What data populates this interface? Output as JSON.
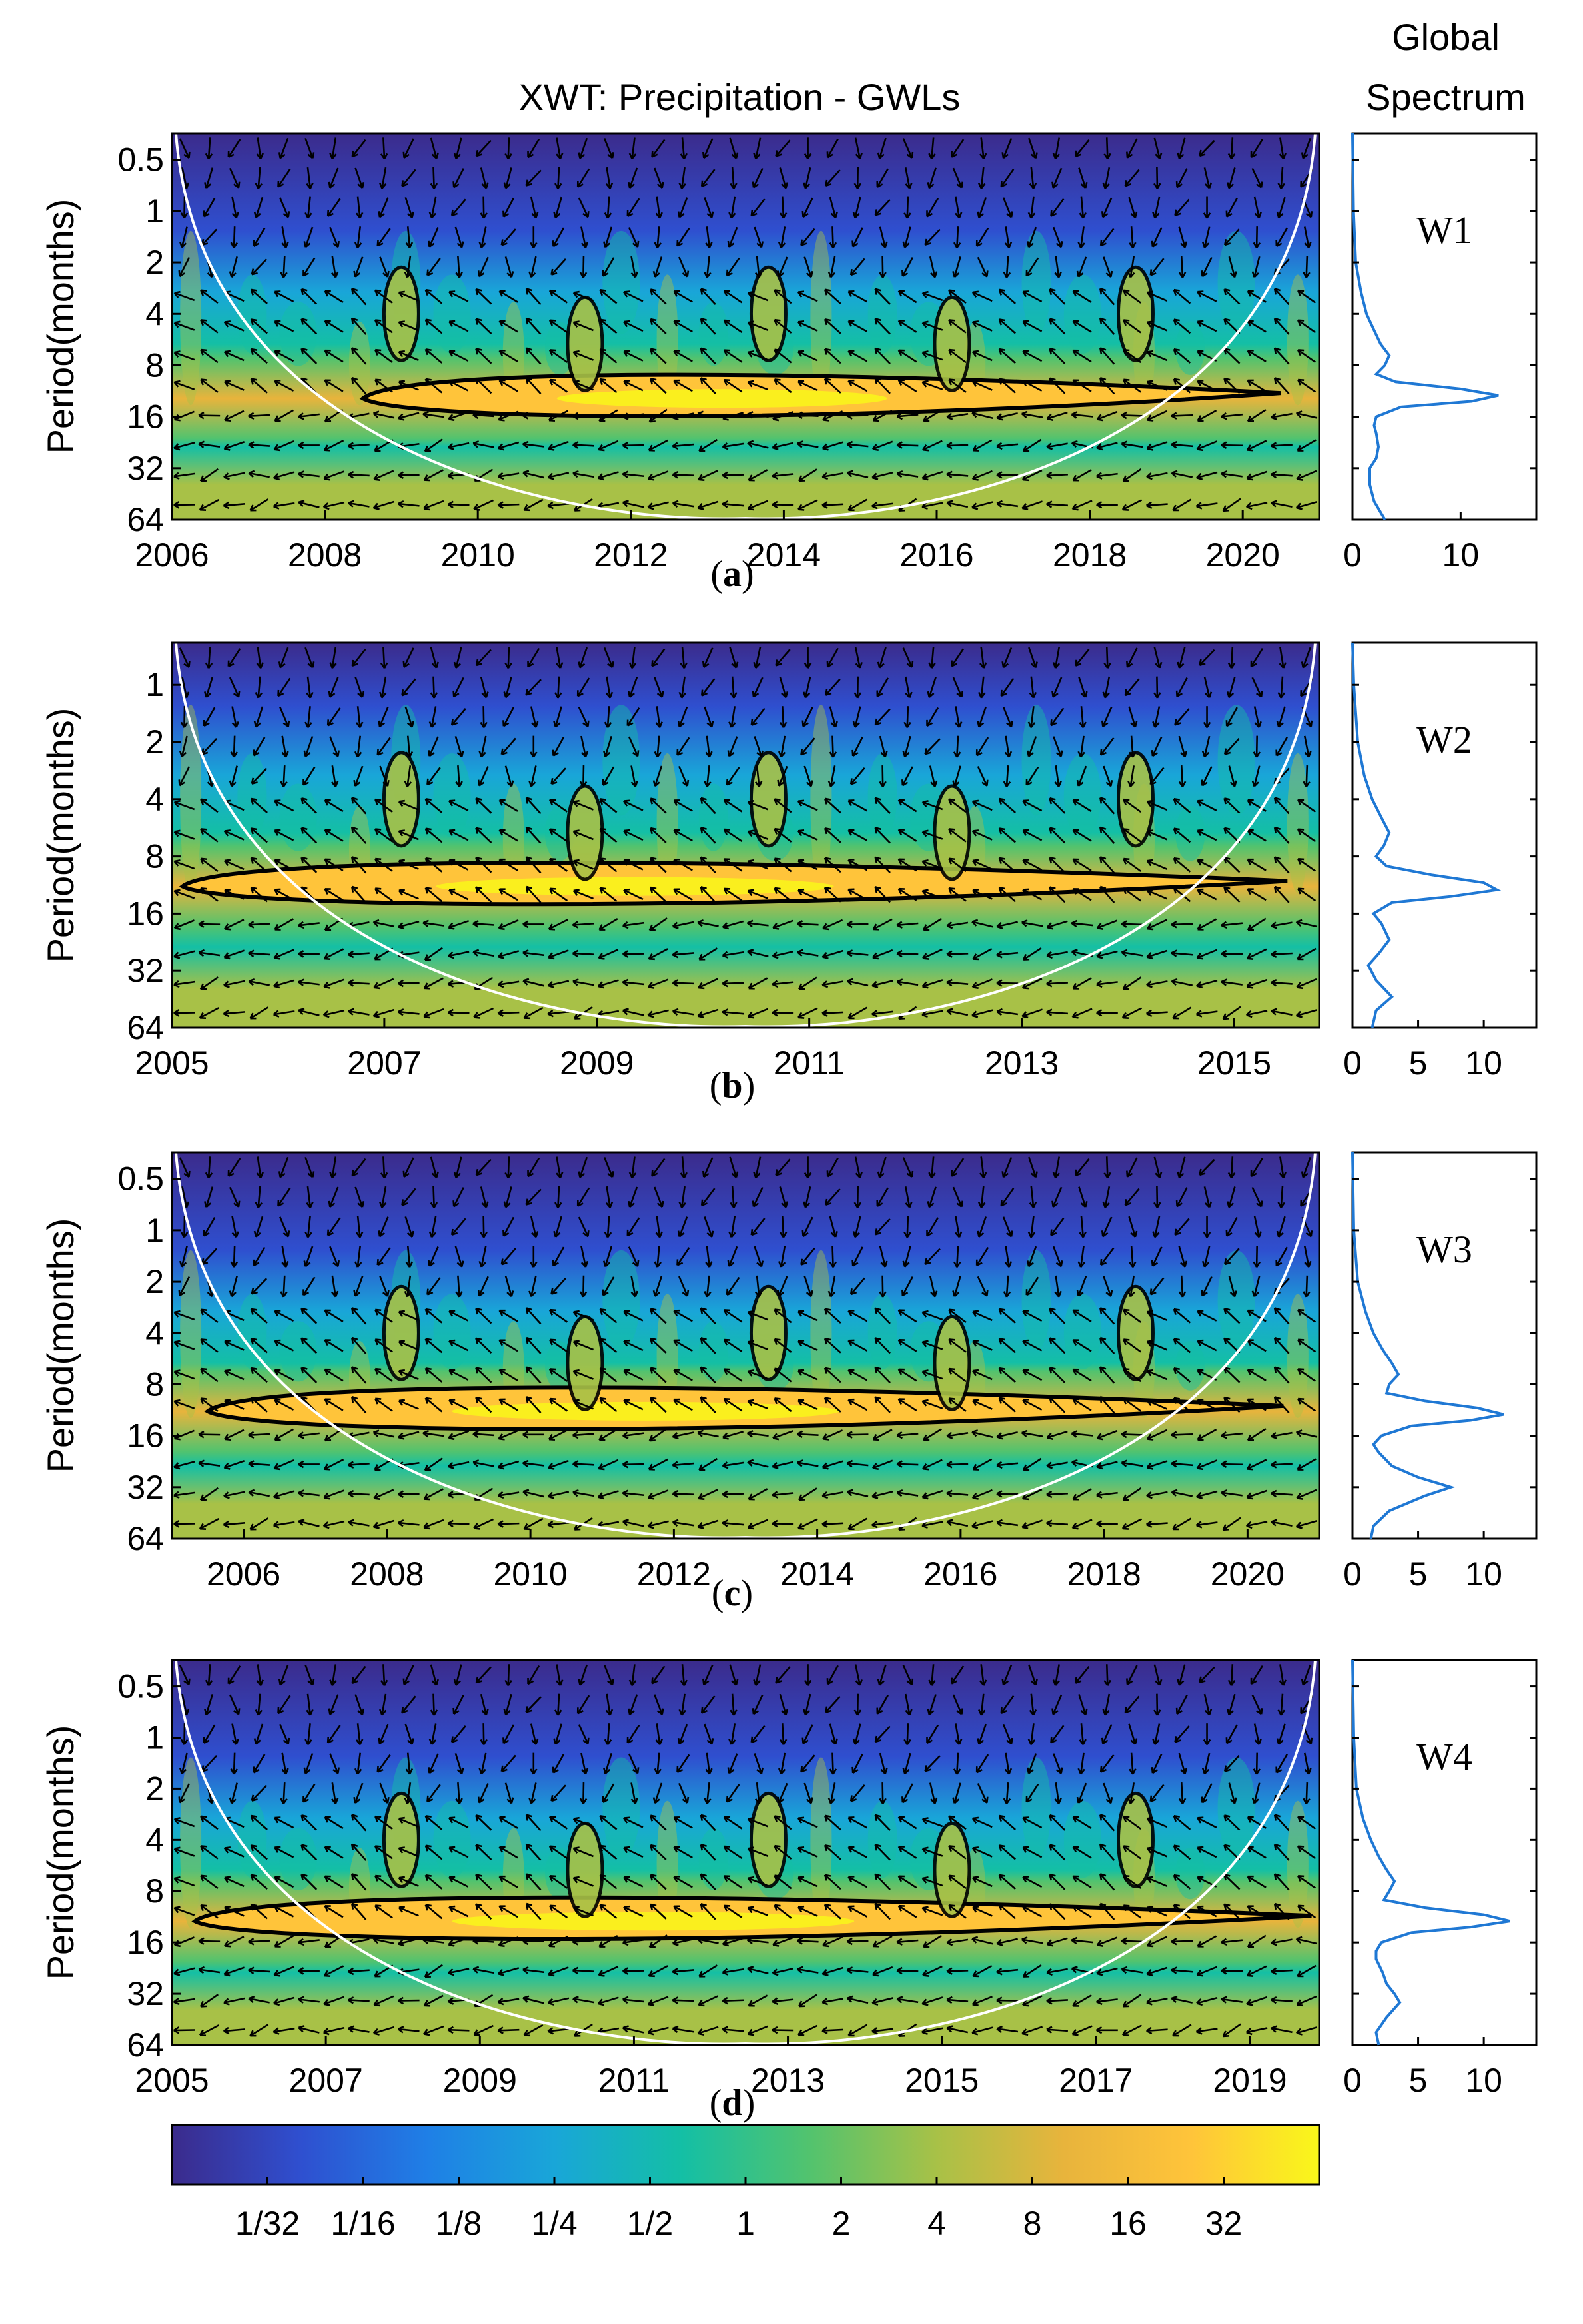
{
  "figure_title": "XWT: Precipitation - GWLs",
  "global_title_line1": "Global",
  "global_title_line2": "Spectrum",
  "colors": {
    "cmap": [
      "#3b2b8c",
      "#2f4fcf",
      "#1f7fe6",
      "#19a6d8",
      "#14bfa5",
      "#52c36e",
      "#a8c147",
      "#e8b43c",
      "#ffc43a",
      "#f9f71a"
    ],
    "spectrum_line": "#1f78d4",
    "contour": "#000000",
    "coi": "#ffffff"
  },
  "chart_data": [
    {
      "type": "heatmap",
      "panel_label": "a",
      "site": "W1",
      "ylabel": "Period(months)",
      "x_ticks": [
        "2006",
        "2008",
        "2010",
        "2012",
        "2014",
        "2016",
        "2018",
        "2020"
      ],
      "xlim": [
        2006,
        2021
      ],
      "y_ticks": [
        "0.5",
        "1",
        "2",
        "4",
        "8",
        "16",
        "32",
        "64"
      ],
      "ylim": [
        0.35,
        64
      ],
      "band_center_period": 12.5,
      "band_x_range": [
        2008.5,
        2020.5
      ],
      "global_spectrum": {
        "x_ticks": [
          "0",
          "10"
        ],
        "xlim": [
          0,
          17
        ],
        "period": [
          0.35,
          1,
          2,
          3,
          4,
          5,
          6,
          7,
          8,
          9,
          10,
          11,
          12,
          13,
          14,
          16,
          18,
          20,
          24,
          28,
          32,
          40,
          50,
          64
        ],
        "power": [
          0,
          0.1,
          0.3,
          0.8,
          1.3,
          2.0,
          2.6,
          3.4,
          3.0,
          2.2,
          4.0,
          10.0,
          13.5,
          11.0,
          4.5,
          2.2,
          2.0,
          2.2,
          2.4,
          2.2,
          1.6,
          1.6,
          2.0,
          3.0
        ]
      }
    },
    {
      "type": "heatmap",
      "panel_label": "b",
      "site": "W2",
      "ylabel": "Period(months)",
      "x_ticks": [
        "2005",
        "2007",
        "2009",
        "2011",
        "2013",
        "2015"
      ],
      "xlim": [
        2005,
        2015.8
      ],
      "y_ticks": [
        "1",
        "2",
        "4",
        "8",
        "16",
        "32",
        "64"
      ],
      "ylim": [
        0.6,
        64
      ],
      "band_center_period": 11.5,
      "band_x_range": [
        2005.1,
        2015.5
      ],
      "global_spectrum": {
        "x_ticks": [
          "0",
          "5",
          "10"
        ],
        "xlim": [
          0,
          14
        ],
        "period": [
          0.6,
          1,
          2,
          3,
          4,
          5,
          6,
          7,
          8,
          9,
          10,
          11,
          12,
          13,
          14,
          16,
          18,
          22,
          26,
          30,
          36,
          44,
          52,
          64
        ],
        "power": [
          0,
          0.1,
          0.4,
          0.9,
          1.5,
          2.2,
          2.8,
          2.4,
          1.8,
          2.6,
          6.0,
          10.0,
          11.0,
          7.5,
          3.0,
          1.6,
          2.2,
          2.8,
          2.0,
          1.2,
          1.8,
          3.0,
          1.8,
          1.5
        ]
      }
    },
    {
      "type": "heatmap",
      "panel_label": "c",
      "site": "W3",
      "ylabel": "Period(months)",
      "x_ticks": [
        "2006",
        "2008",
        "2010",
        "2012",
        "2014",
        "2016",
        "2018",
        "2020"
      ],
      "xlim": [
        2005,
        2021
      ],
      "y_ticks": [
        "0.5",
        "1",
        "2",
        "4",
        "8",
        "16",
        "32",
        "64"
      ],
      "ylim": [
        0.35,
        64
      ],
      "band_center_period": 11.5,
      "band_x_range": [
        2005.5,
        2020.5
      ],
      "global_spectrum": {
        "x_ticks": [
          "0",
          "5",
          "10"
        ],
        "xlim": [
          0,
          14
        ],
        "period": [
          0.35,
          1,
          2,
          3,
          4,
          5,
          6,
          7,
          8,
          9,
          10,
          11,
          12,
          13,
          14,
          16,
          18,
          20,
          24,
          28,
          32,
          36,
          44,
          54,
          64
        ],
        "power": [
          0,
          0.1,
          0.4,
          1.0,
          1.6,
          2.3,
          3.0,
          3.5,
          2.8,
          2.6,
          5.5,
          9.5,
          11.5,
          9.0,
          4.5,
          2.2,
          1.6,
          2.0,
          3.0,
          5.0,
          7.5,
          5.5,
          2.8,
          1.6,
          1.4
        ]
      }
    },
    {
      "type": "heatmap",
      "panel_label": "d",
      "site": "W4",
      "ylabel": "Period(months)",
      "x_ticks": [
        "2005",
        "2007",
        "2009",
        "2011",
        "2013",
        "2015",
        "2017",
        "2019"
      ],
      "xlim": [
        2005,
        2019.9
      ],
      "y_ticks": [
        "0.5",
        "1",
        "2",
        "4",
        "8",
        "16",
        "32",
        "64"
      ],
      "ylim": [
        0.35,
        64
      ],
      "band_center_period": 12.0,
      "band_x_range": [
        2005.3,
        2019.8
      ],
      "global_spectrum": {
        "x_ticks": [
          "0",
          "5",
          "10"
        ],
        "xlim": [
          0,
          14
        ],
        "period": [
          0.35,
          1,
          2,
          3,
          4,
          5,
          6,
          7,
          8,
          9,
          10,
          11,
          12,
          13,
          14,
          16,
          18,
          20,
          24,
          28,
          32,
          36,
          44,
          54,
          64
        ],
        "power": [
          0,
          0.1,
          0.3,
          0.8,
          1.4,
          2.0,
          2.6,
          3.2,
          2.8,
          2.4,
          5.5,
          10.0,
          12.0,
          9.0,
          4.5,
          2.2,
          1.8,
          1.8,
          2.3,
          2.6,
          3.2,
          3.6,
          2.6,
          1.8,
          2.0
        ]
      }
    }
  ],
  "colorbar": {
    "tick_labels": [
      "1/32",
      "1/16",
      "1/8",
      "1/4",
      "1/2",
      "1",
      "2",
      "4",
      "8",
      "16",
      "32"
    ]
  }
}
